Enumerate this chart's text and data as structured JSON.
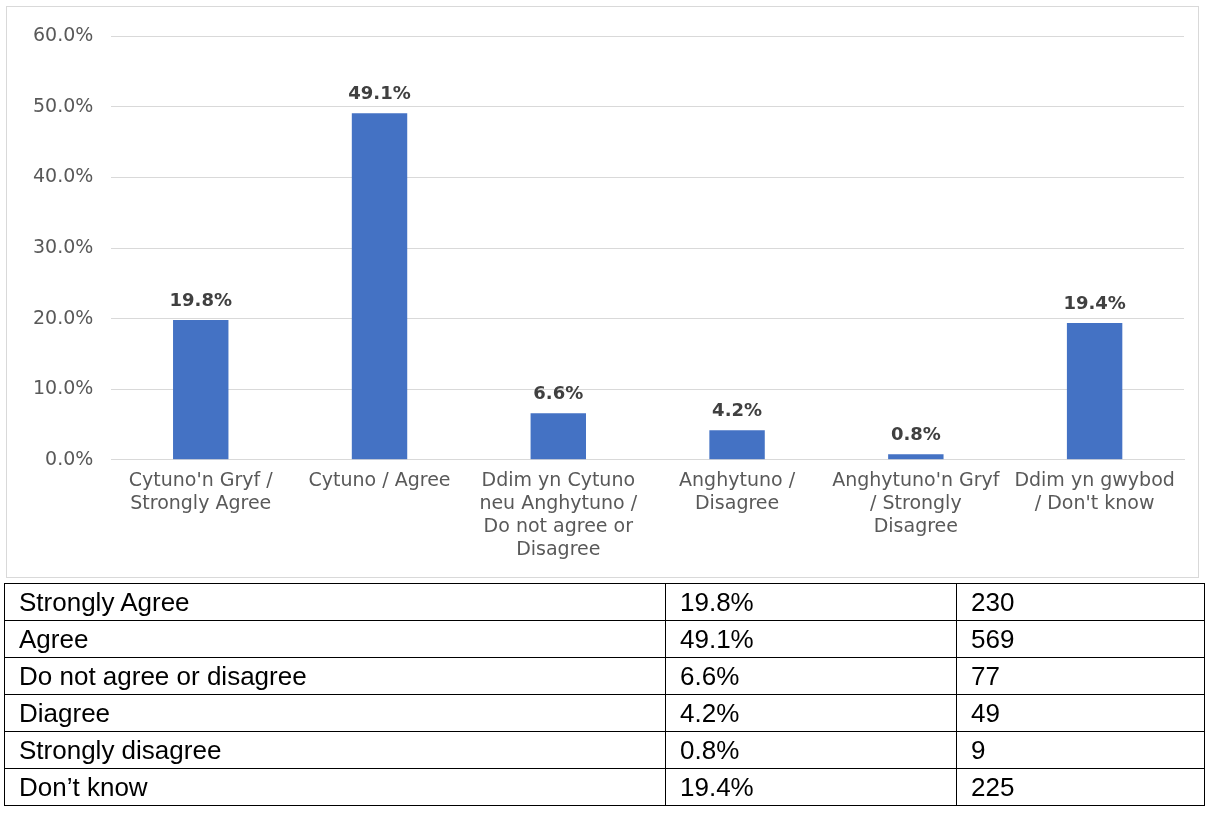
{
  "chart_data": [
    {
      "type": "bar",
      "categories": [
        "Cytuno'n Gryf / Strongly Agree",
        "Cytuno / Agree",
        "Ddim yn Cytuno neu Anghytuno / Do not agree or Disagree",
        "Anghytuno / Disagree",
        "Anghytuno'n Gryf / Strongly Disagree",
        "Ddim yn gwybod / Don't know"
      ],
      "values": [
        19.8,
        49.1,
        6.6,
        4.2,
        0.8,
        19.4
      ],
      "value_labels": [
        "19.8%",
        "49.1%",
        "6.6%",
        "4.2%",
        "0.8%",
        "19.4%"
      ],
      "color": "#4472c4",
      "ylim": [
        0,
        60
      ],
      "yticks": [
        {
          "value": 0,
          "label": "0.0%"
        },
        {
          "value": 10,
          "label": "10.0%"
        },
        {
          "value": 20,
          "label": "20.0%"
        },
        {
          "value": 30,
          "label": "30.0%"
        },
        {
          "value": 40,
          "label": "40.0%"
        },
        {
          "value": 50,
          "label": "50.0%"
        },
        {
          "value": 60,
          "label": "60.0%"
        }
      ],
      "grid": "y",
      "legend": false
    },
    {
      "type": "other",
      "annotations": [
        "Strongly Agree",
        "19.8%",
        "230",
        "Agree",
        "49.1%",
        "569",
        "Do not agree or disagree",
        "6.6%",
        "77",
        "Diagree",
        "4.2%",
        "49",
        "Strongly disagree",
        "0.8%",
        "9",
        "Don’t know",
        "19.4%",
        "225"
      ]
    }
  ]
}
